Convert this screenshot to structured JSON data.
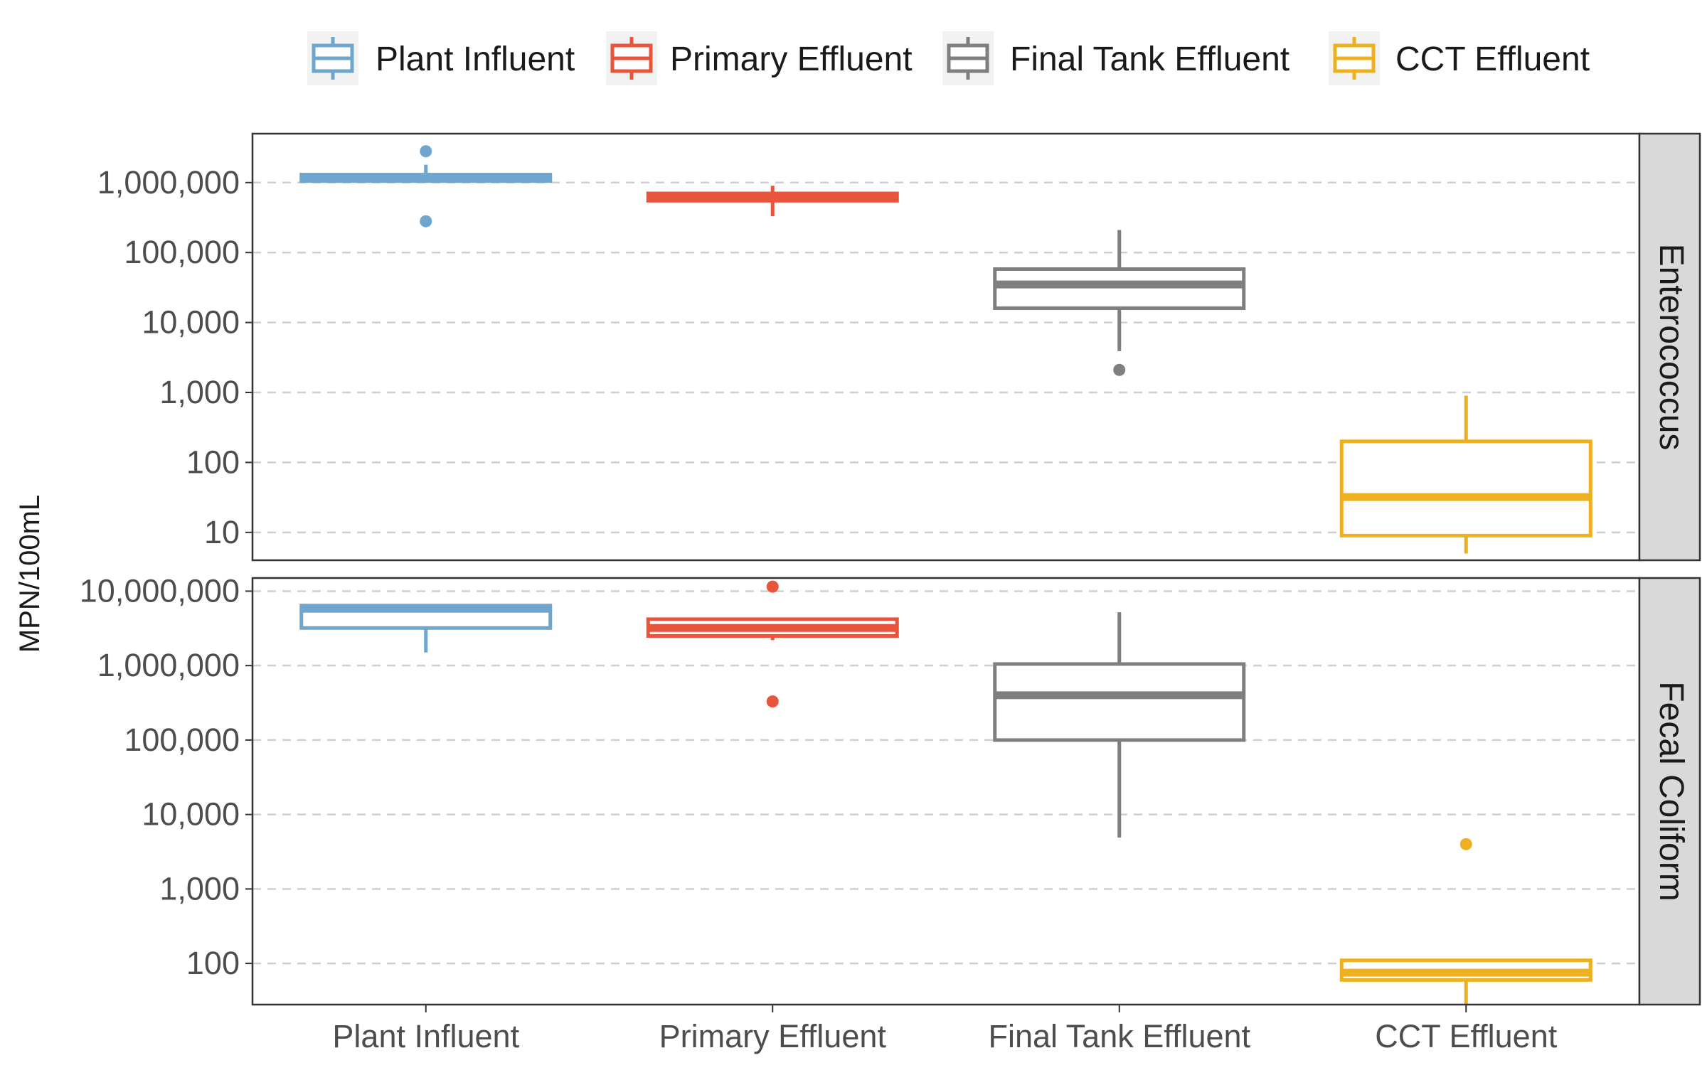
{
  "chart_data": {
    "type": "box",
    "ylabel": "MPN/100mL",
    "yscale": "log10",
    "grid": "horizontal dashed",
    "legend_position": "top",
    "categories": [
      "Plant Influent",
      "Primary Effluent",
      "Final Tank Effluent",
      "CCT Effluent"
    ],
    "colors": {
      "Plant Influent": "#6ea6cd",
      "Primary Effluent": "#e8553d",
      "Final Tank Effluent": "#7f7f7f",
      "CCT Effluent": "#edb120"
    },
    "legend": [
      "Plant Influent",
      "Primary Effluent",
      "Final Tank Effluent",
      "CCT Effluent"
    ],
    "panels": [
      {
        "strip": "Enterococcus",
        "ylim": [
          4,
          5000000
        ],
        "yticks": [
          10,
          100,
          1000,
          10000,
          100000,
          1000000
        ],
        "ytick_labels": [
          "10",
          "100",
          "1,000",
          "10,000",
          "100,000",
          "1,000,000"
        ],
        "boxes": [
          {
            "category": "Plant Influent",
            "lower": 1050000,
            "q1": 1050000,
            "median": 1150000,
            "q3": 1300000,
            "upper": 1800000,
            "outliers": [
              2800000,
              280000
            ]
          },
          {
            "category": "Primary Effluent",
            "lower": 330000,
            "q1": 550000,
            "median": 620000,
            "q3": 700000,
            "upper": 900000,
            "outliers": []
          },
          {
            "category": "Final Tank Effluent",
            "lower": 3900,
            "q1": 16000,
            "median": 35000,
            "q3": 58000,
            "upper": 210000,
            "outliers": [
              2100
            ]
          },
          {
            "category": "CCT Effluent",
            "lower": 5,
            "q1": 9,
            "median": 32,
            "q3": 200,
            "upper": 900,
            "outliers": []
          }
        ]
      },
      {
        "strip": "Fecal Coliform",
        "ylim": [
          28,
          15000000
        ],
        "yticks": [
          100,
          1000,
          10000,
          100000,
          1000000,
          10000000
        ],
        "ytick_labels": [
          "100",
          "1,000",
          "10,000",
          "100,000",
          "1,000,000",
          "10,000,000"
        ],
        "boxes": [
          {
            "category": "Plant Influent",
            "lower": 1500000,
            "q1": 3200000,
            "median": 5800000,
            "q3": 6400000,
            "upper": 6400000,
            "outliers": []
          },
          {
            "category": "Primary Effluent",
            "lower": 2200000,
            "q1": 2500000,
            "median": 3200000,
            "q3": 4200000,
            "upper": 4200000,
            "outliers": [
              11500000,
              330000
            ]
          },
          {
            "category": "Final Tank Effluent",
            "lower": 4900,
            "q1": 100000,
            "median": 400000,
            "q3": 1050000,
            "upper": 5200000,
            "outliers": []
          },
          {
            "category": "CCT Effluent",
            "lower": 28,
            "q1": 60,
            "median": 75,
            "q3": 110,
            "upper": 115,
            "outliers": [
              4000
            ]
          }
        ]
      }
    ]
  }
}
